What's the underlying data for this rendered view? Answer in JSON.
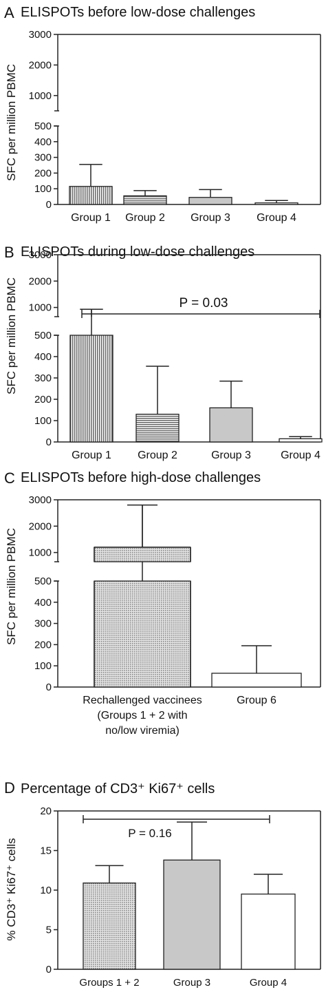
{
  "chart_data": [
    {
      "panel": "A",
      "type": "bar",
      "title": "ELISPOTs before low-dose challenges",
      "ylabel": "SFC per million PBMC",
      "categories": [
        "Group 1",
        "Group 2",
        "Group 3",
        "Group 4"
      ],
      "values": [
        115,
        55,
        45,
        10
      ],
      "error_upper": [
        255,
        88,
        95,
        25
      ],
      "fills": [
        "vstripe",
        "hstripe",
        "#c8c8c8",
        "#ffffff"
      ],
      "ylim": [
        0,
        3000
      ],
      "axis_break": [
        500,
        500
      ],
      "yticks_lower": [
        0,
        100,
        200,
        300,
        400,
        500
      ],
      "yticks_upper": [
        1000,
        2000,
        3000
      ],
      "ytick_labels_lower": [
        "0",
        "100",
        "200",
        "300",
        "400",
        "500"
      ],
      "ytick_labels_upper": [
        "1000",
        "2000",
        "3000"
      ],
      "annotation": null
    },
    {
      "panel": "B",
      "type": "bar",
      "title": "ELISPOTs during low-dose challenges",
      "ylabel": "SFC per million PBMC",
      "categories": [
        "Group 1",
        "Group 2",
        "Group 3",
        "Group 4"
      ],
      "values": [
        500,
        130,
        160,
        15
      ],
      "error_upper": [
        930,
        355,
        285,
        25
      ],
      "fills": [
        "vstripe",
        "hstripe",
        "#c8c8c8",
        "#ffffff"
      ],
      "ylim": [
        0,
        3000
      ],
      "axis_break": [
        500,
        650
      ],
      "yticks_lower": [
        0,
        100,
        200,
        300,
        400,
        500
      ],
      "yticks_upper": [
        1000,
        2000,
        3000
      ],
      "ytick_labels_lower": [
        "0",
        "100",
        "200",
        "300",
        "400",
        "500"
      ],
      "ytick_labels_upper": [
        "1000",
        "2000",
        "3000"
      ],
      "annotation": {
        "text": "P = 0.03",
        "from": 0,
        "to": 3
      }
    },
    {
      "panel": "C",
      "type": "bar",
      "title": "ELISPOTs before high-dose challenges",
      "ylabel": "SFC per million PBMC",
      "categories": [
        "Rechallenged vaccinees\n(Groups 1 + 2 with\nno/low viremia)",
        "Group 6"
      ],
      "values": [
        1200,
        65
      ],
      "error_upper": [
        2800,
        195
      ],
      "fills": [
        "dots",
        "#ffffff"
      ],
      "ylim": [
        0,
        3000
      ],
      "axis_break": [
        500,
        650
      ],
      "yticks_lower": [
        0,
        100,
        200,
        300,
        400,
        500
      ],
      "yticks_upper": [
        1000,
        2000,
        3000
      ],
      "ytick_labels_lower": [
        "0",
        "100",
        "200",
        "300",
        "400",
        "500"
      ],
      "ytick_labels_upper": [
        "1000",
        "2000",
        "3000"
      ],
      "annotation": null
    },
    {
      "panel": "D",
      "type": "bar",
      "title": "Percentage of CD3⁺ Ki67⁺ cells",
      "ylabel": "% CD3⁺ Ki67⁺ cells",
      "categories": [
        "Groups 1 +  2",
        "Group 3",
        "Group 4"
      ],
      "values": [
        10.9,
        13.8,
        9.5
      ],
      "error_upper": [
        13.1,
        18.6,
        12.0
      ],
      "fills": [
        "dots",
        "#c8c8c8",
        "#ffffff"
      ],
      "ylim": [
        0,
        20
      ],
      "axis_break": null,
      "yticks_lower": [
        0,
        5,
        10,
        15,
        20
      ],
      "ytick_labels_lower": [
        "0",
        "5",
        "10",
        "15",
        "20"
      ],
      "annotation": {
        "text": "P = 0.16",
        "from": 0,
        "to": 2
      }
    }
  ]
}
